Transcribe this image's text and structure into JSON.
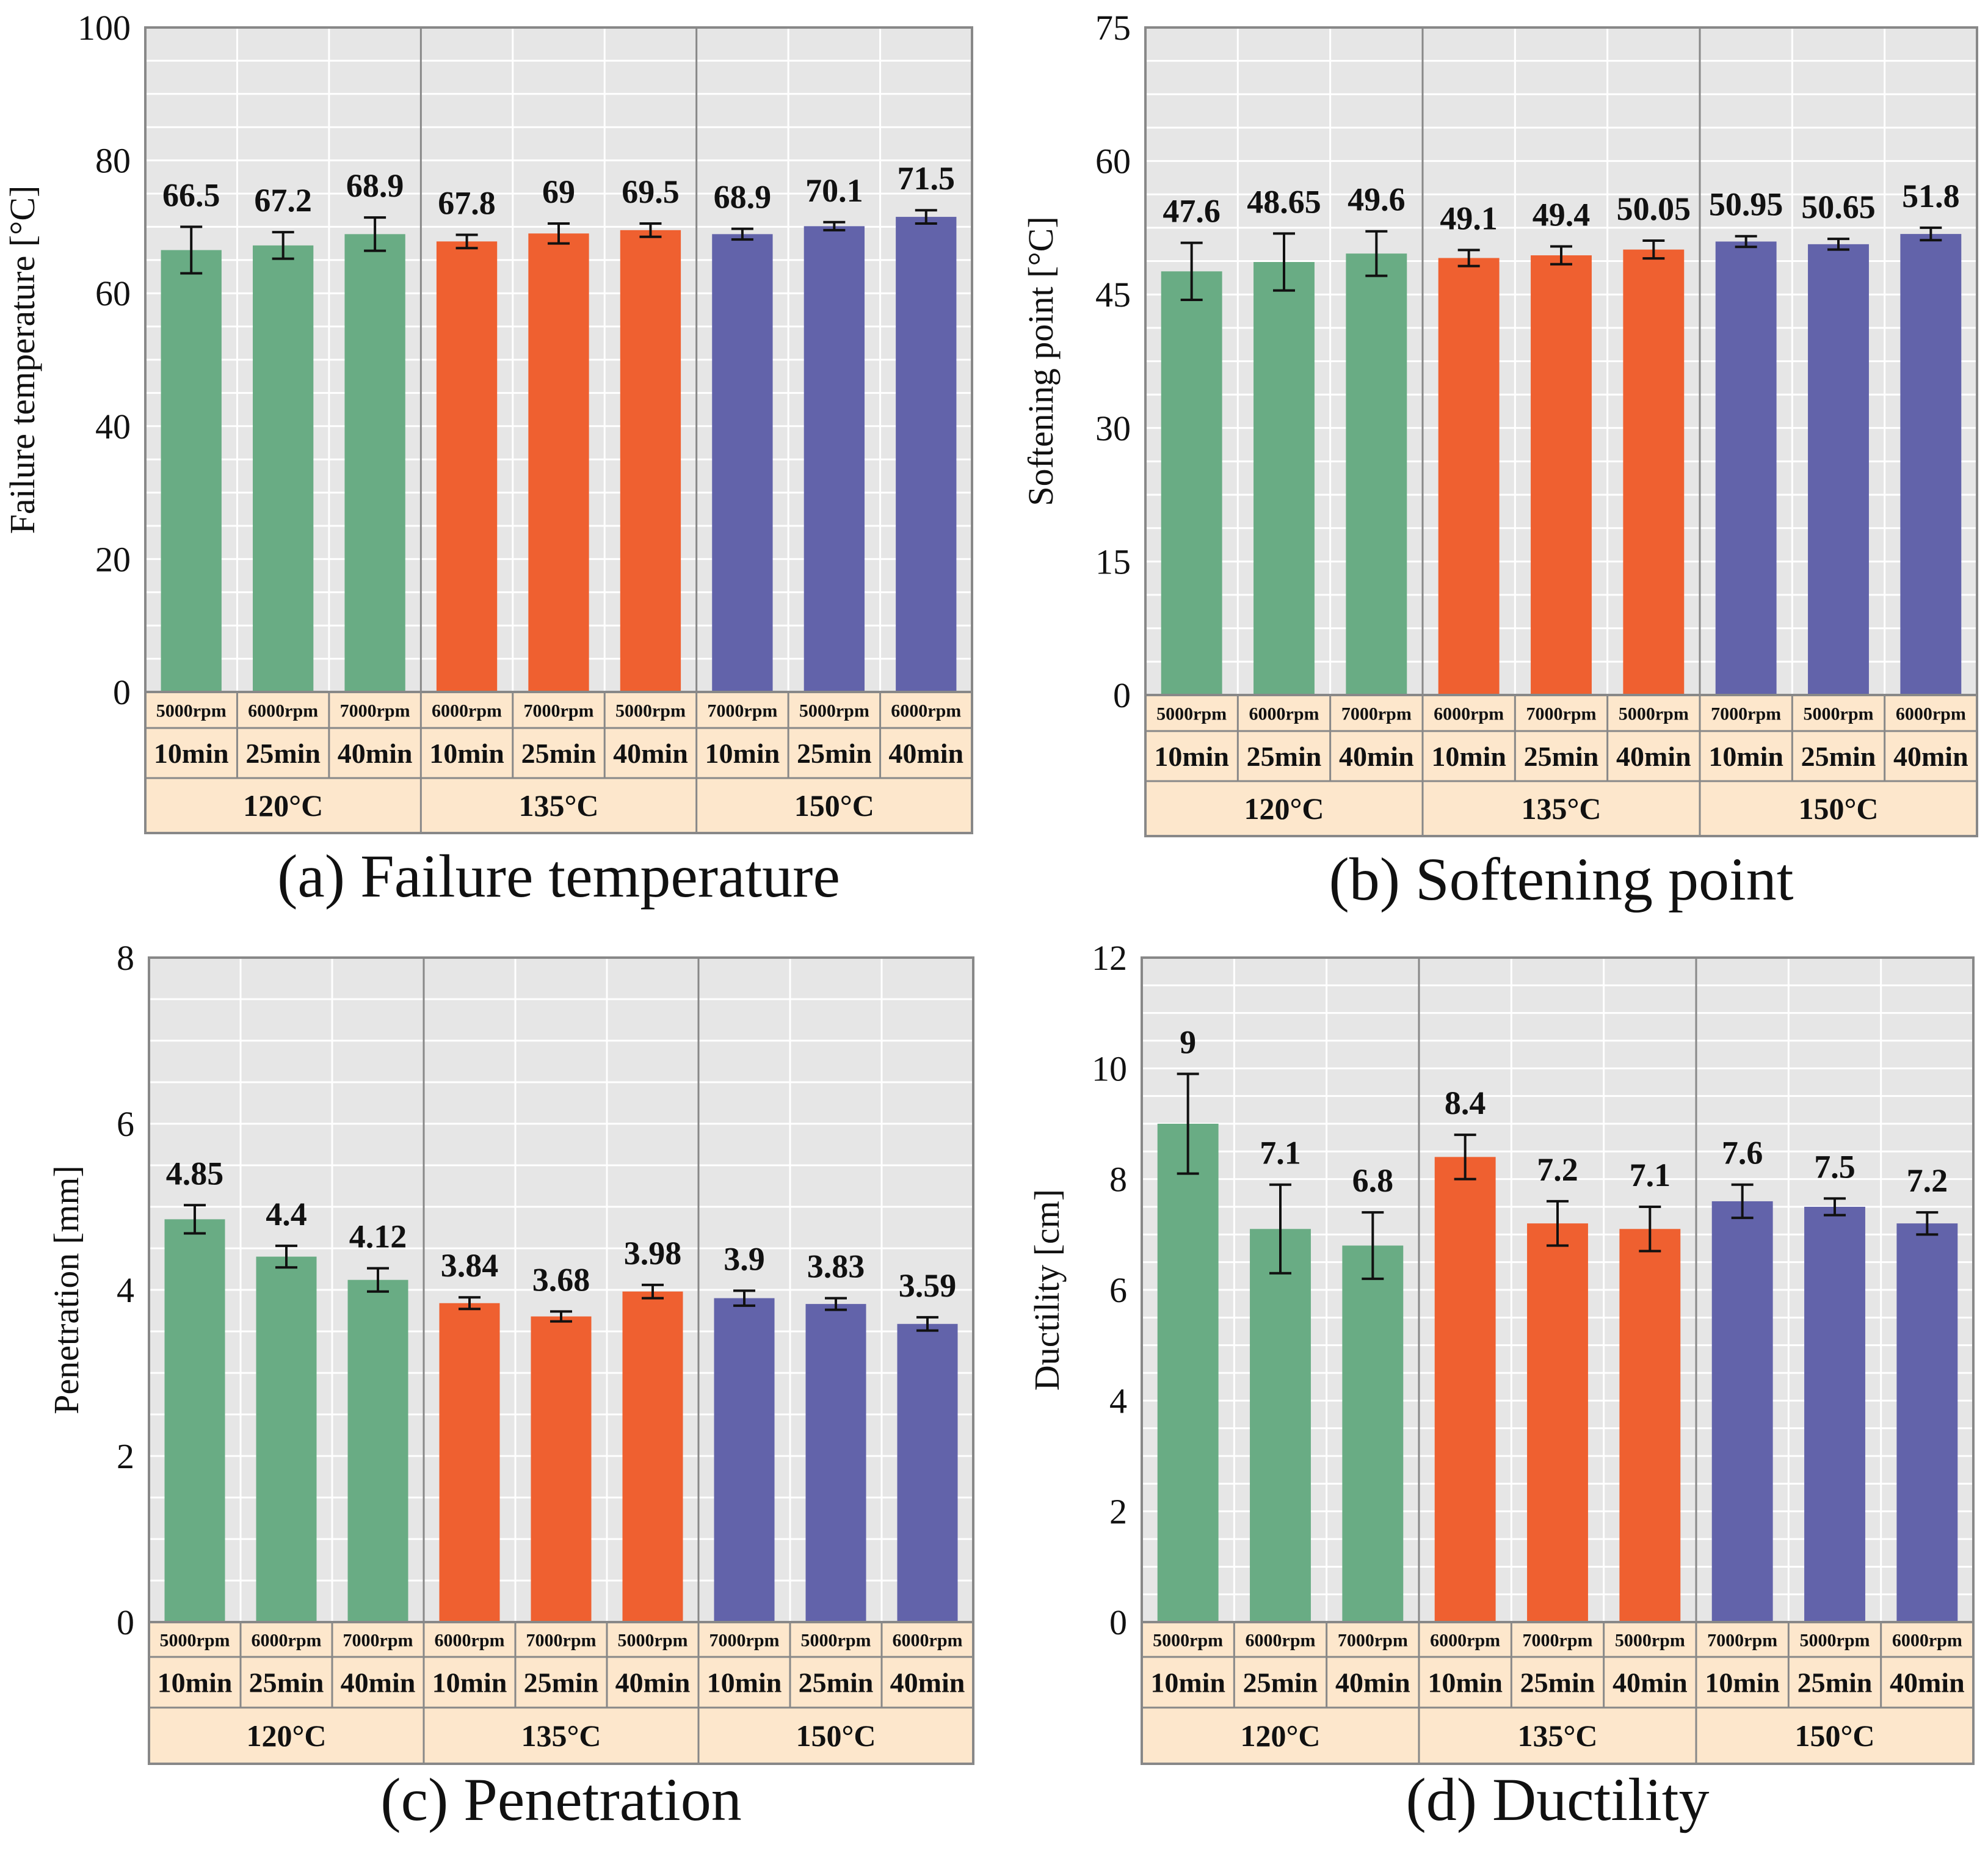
{
  "figure": {
    "colors": {
      "g120": "#69ac84",
      "g135": "#ef6030",
      "g150": "#6263aa",
      "plot_bg": "#e6e6e6",
      "table_bg": "#fde7cc",
      "grid": "#ffffff",
      "frame": "#888888"
    }
  },
  "chart_data": [
    {
      "type": "bar",
      "title": "(a) Failure temperature",
      "ylabel": "Failure temperature [°C]",
      "ylim": [
        0,
        100
      ],
      "yticks": [
        0,
        20,
        40,
        60,
        80,
        100
      ],
      "categories": [
        "5000rpm|10min",
        "6000rpm|25min",
        "7000rpm|40min",
        "6000rpm|10min",
        "7000rpm|25min",
        "5000rpm|40min",
        "7000rpm|10min",
        "5000rpm|25min",
        "6000rpm|40min"
      ],
      "speed_labels": [
        "5000rpm",
        "6000rpm",
        "7000rpm",
        "6000rpm",
        "7000rpm",
        "5000rpm",
        "7000rpm",
        "5000rpm",
        "6000rpm"
      ],
      "time_labels": [
        "10min",
        "25min",
        "40min",
        "10min",
        "25min",
        "40min",
        "10min",
        "25min",
        "40min"
      ],
      "groups": [
        "120°C",
        "135°C",
        "150°C"
      ],
      "values": [
        66.5,
        67.2,
        68.9,
        67.8,
        69,
        69.5,
        68.9,
        70.1,
        71.5
      ],
      "value_labels": [
        "66.5",
        "67.2",
        "68.9",
        "67.8",
        "69",
        "69.5",
        "68.9",
        "70.1",
        "71.5"
      ],
      "errors": [
        3.5,
        2.0,
        2.5,
        1.0,
        1.5,
        1.0,
        0.8,
        0.6,
        1.0
      ]
    },
    {
      "type": "bar",
      "title": "(b) Softening point",
      "ylabel": "Softening point [°C]",
      "ylim": [
        0,
        75
      ],
      "yticks": [
        0,
        15,
        30,
        45,
        60,
        75
      ],
      "categories": [
        "5000rpm|10min",
        "6000rpm|25min",
        "7000rpm|40min",
        "6000rpm|10min",
        "7000rpm|25min",
        "5000rpm|40min",
        "7000rpm|10min",
        "5000rpm|25min",
        "6000rpm|40min"
      ],
      "speed_labels": [
        "5000rpm",
        "6000rpm",
        "7000rpm",
        "6000rpm",
        "7000rpm",
        "5000rpm",
        "7000rpm",
        "5000rpm",
        "6000rpm"
      ],
      "time_labels": [
        "10min",
        "25min",
        "40min",
        "10min",
        "25min",
        "40min",
        "10min",
        "25min",
        "40min"
      ],
      "groups": [
        "120°C",
        "135°C",
        "150°C"
      ],
      "values": [
        47.6,
        48.65,
        49.6,
        49.1,
        49.4,
        50.05,
        50.95,
        50.65,
        51.8
      ],
      "value_labels": [
        "47.6",
        "48.65",
        "49.6",
        "49.1",
        "49.4",
        "50.05",
        "50.95",
        "50.65",
        "51.8"
      ],
      "errors": [
        3.2,
        3.2,
        2.5,
        0.9,
        1.0,
        1.0,
        0.6,
        0.6,
        0.7
      ]
    },
    {
      "type": "bar",
      "title": "(c) Penetration",
      "ylabel": "Penetration [mm]",
      "ylim": [
        0,
        8
      ],
      "yticks": [
        0,
        2,
        4,
        6,
        8
      ],
      "categories": [
        "5000rpm|10min",
        "6000rpm|25min",
        "7000rpm|40min",
        "6000rpm|10min",
        "7000rpm|25min",
        "5000rpm|40min",
        "7000rpm|10min",
        "5000rpm|25min",
        "6000rpm|40min"
      ],
      "speed_labels": [
        "5000rpm",
        "6000rpm",
        "7000rpm",
        "6000rpm",
        "7000rpm",
        "5000rpm",
        "7000rpm",
        "5000rpm",
        "6000rpm"
      ],
      "time_labels": [
        "10min",
        "25min",
        "40min",
        "10min",
        "25min",
        "40min",
        "10min",
        "25min",
        "40min"
      ],
      "groups": [
        "120°C",
        "135°C",
        "150°C"
      ],
      "values": [
        4.85,
        4.4,
        4.12,
        3.84,
        3.68,
        3.98,
        3.9,
        3.83,
        3.59
      ],
      "value_labels": [
        "4.85",
        "4.4",
        "4.12",
        "3.84",
        "3.68",
        "3.98",
        "3.9",
        "3.83",
        "3.59"
      ],
      "errors": [
        0.17,
        0.13,
        0.14,
        0.07,
        0.06,
        0.08,
        0.09,
        0.07,
        0.08
      ]
    },
    {
      "type": "bar",
      "title": "(d) Ductility",
      "ylabel": "Ductility [cm]",
      "ylim": [
        0,
        12
      ],
      "yticks": [
        0,
        2,
        4,
        6,
        8,
        10,
        12
      ],
      "categories": [
        "5000rpm|10min",
        "6000rpm|25min",
        "7000rpm|40min",
        "6000rpm|10min",
        "7000rpm|25min",
        "5000rpm|40min",
        "7000rpm|10min",
        "5000rpm|25min",
        "6000rpm|40min"
      ],
      "speed_labels": [
        "5000rpm",
        "6000rpm",
        "7000rpm",
        "6000rpm",
        "7000rpm",
        "5000rpm",
        "7000rpm",
        "5000rpm",
        "6000rpm"
      ],
      "time_labels": [
        "10min",
        "25min",
        "40min",
        "10min",
        "25min",
        "40min",
        "10min",
        "25min",
        "40min"
      ],
      "groups": [
        "120°C",
        "135°C",
        "150°C"
      ],
      "values": [
        9,
        7.1,
        6.8,
        8.4,
        7.2,
        7.1,
        7.6,
        7.5,
        7.2
      ],
      "value_labels": [
        "9",
        "7.1",
        "6.8",
        "8.4",
        "7.2",
        "7.1",
        "7.6",
        "7.5",
        "7.2"
      ],
      "errors": [
        0.9,
        0.8,
        0.6,
        0.4,
        0.4,
        0.4,
        0.3,
        0.15,
        0.2
      ]
    }
  ]
}
